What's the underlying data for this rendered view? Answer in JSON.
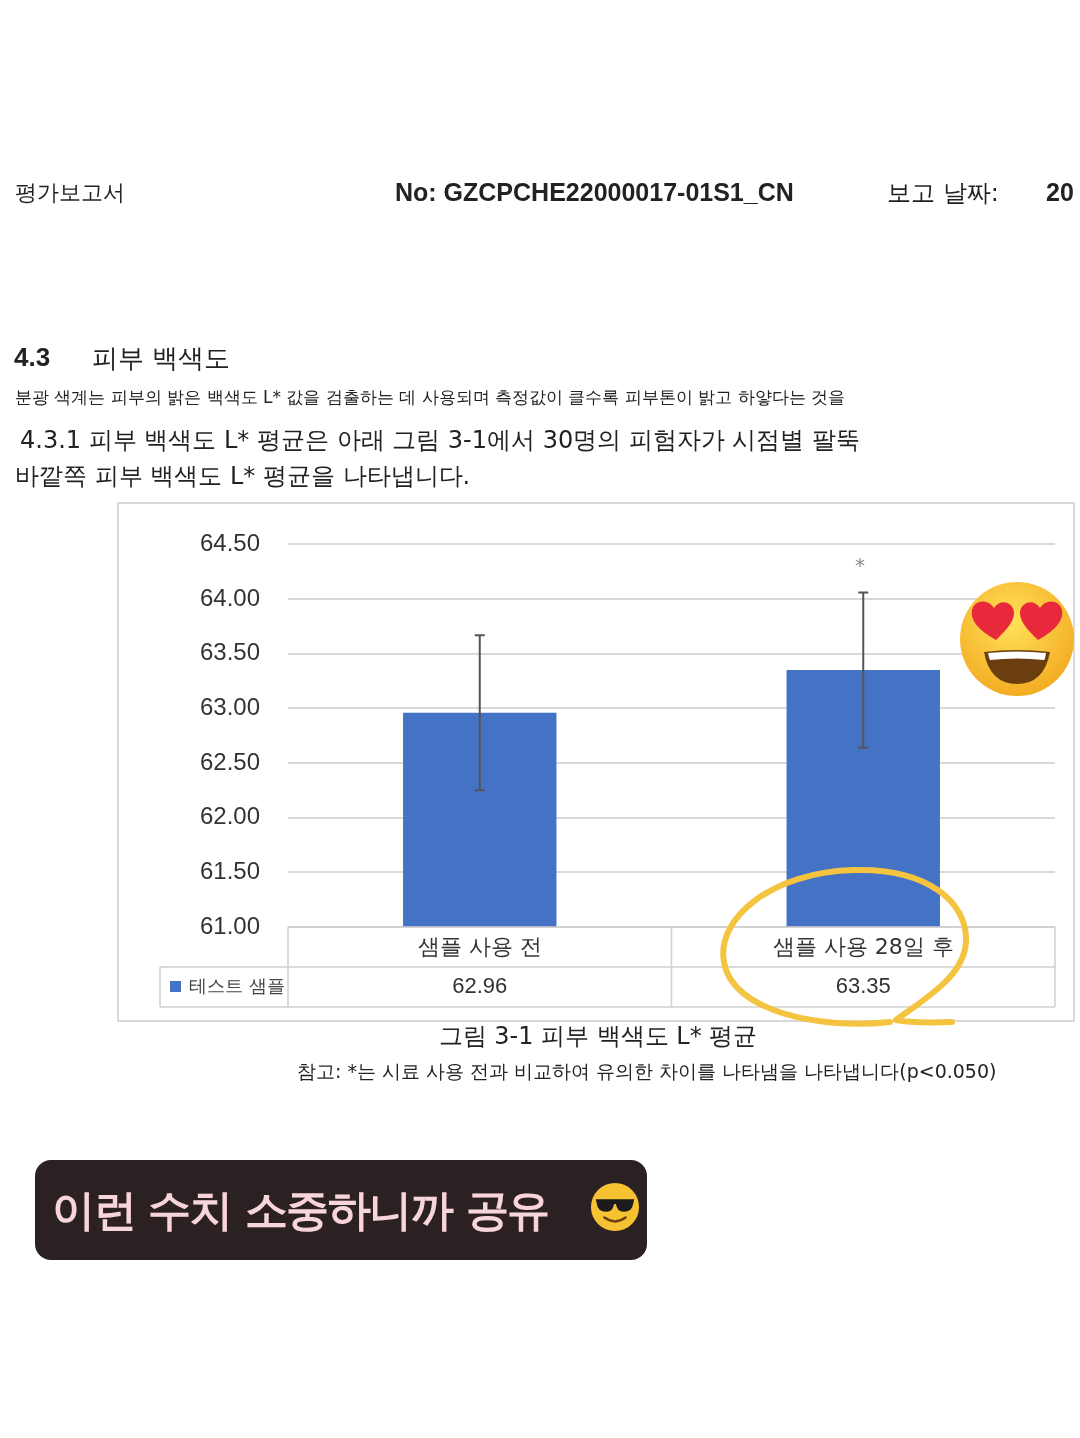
{
  "chart_data": {
    "type": "bar",
    "title": "그림 3-1 피부 백색도 L* 평균",
    "categories": [
      "샘플 사용 전",
      "샘플 사용 28일 후"
    ],
    "series": [
      {
        "name": "테스트 샘플",
        "color": "#4472c4",
        "values": [
          62.96,
          63.35
        ],
        "errors": [
          0.71,
          0.71
        ]
      }
    ],
    "ylim": [
      61,
      64.5
    ],
    "yticks": [
      {
        "value": 61,
        "label": "61.00"
      },
      {
        "value": 61.5,
        "label": "61.50"
      },
      {
        "value": 62,
        "label": "62.00"
      },
      {
        "value": 62.5,
        "label": "62.50"
      },
      {
        "value": 63,
        "label": "63.00"
      },
      {
        "value": 63.5,
        "label": "63.50"
      },
      {
        "value": 64,
        "label": "64.00"
      },
      {
        "value": 64.5,
        "label": "64.50"
      }
    ],
    "grid": "y",
    "legend": "bottom left",
    "data_labels": true,
    "annotations": [
      "평가보고서",
      "No: GZCPCHE22000017-01S1_CN",
      "보고 날짜:",
      "20",
      "4.3",
      "피부 백색도",
      "분광 색계는 피부의 밝은 백색도 L* 값을 검출하는 데 사용되며 측정값이 클수록 피부톤이 밝고 하얗다는 것을",
      "4.3.1 피부 백색도 L* 평균은 아래 그림 3-1에서 30명의 피험자가 시점별 팔뚝 바깥쪽 피부 백색도 L* 평균을 나타냅니다.",
      "참고: *는 시료 사용 전과 비교하여 유의한 차이를 나타냄을 나타냅니다(p<0.050)",
      "이런 수치 소중하니까 공유",
      "*"
    ]
  }
}
